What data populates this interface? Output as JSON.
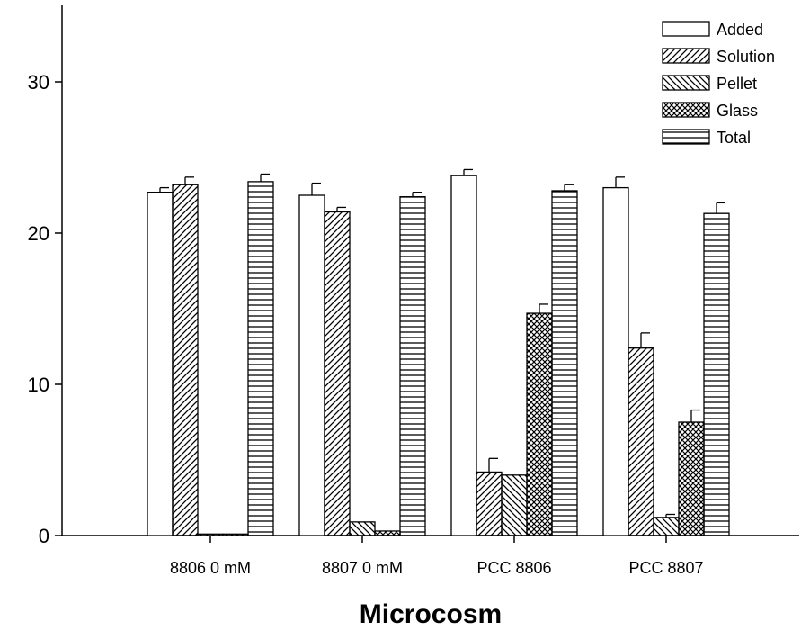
{
  "chart_data": {
    "type": "bar",
    "title": "",
    "xlabel": "Microcosm",
    "ylabel": "",
    "ylim": [
      0,
      35
    ],
    "yticks": [
      0,
      10,
      20,
      30
    ],
    "categories": [
      "8806 0 mM",
      "8807 0 mM",
      "PCC 8806",
      "PCC 8807"
    ],
    "legend_position": "top-right",
    "series": [
      {
        "name": "Added",
        "pattern": "none",
        "values": [
          22.7,
          22.5,
          23.8,
          23.0
        ],
        "errors": [
          0.3,
          0.8,
          0.4,
          0.7
        ]
      },
      {
        "name": "Solution",
        "pattern": "diag-right",
        "values": [
          23.2,
          21.4,
          4.2,
          12.4
        ],
        "errors": [
          0.5,
          0.3,
          0.9,
          1.0
        ]
      },
      {
        "name": "Pellet",
        "pattern": "diag-left",
        "values": [
          0.1,
          0.9,
          4.0,
          1.2
        ],
        "errors": [
          0.0,
          0.0,
          0.0,
          0.2
        ]
      },
      {
        "name": "Glass",
        "pattern": "crosshatch",
        "values": [
          0.1,
          0.3,
          14.7,
          7.5
        ],
        "errors": [
          0.0,
          0.0,
          0.6,
          0.8
        ]
      },
      {
        "name": "Total",
        "pattern": "horizontal",
        "values": [
          23.4,
          22.4,
          22.8,
          21.3
        ],
        "errors": [
          0.5,
          0.3,
          0.4,
          0.7
        ]
      }
    ]
  }
}
